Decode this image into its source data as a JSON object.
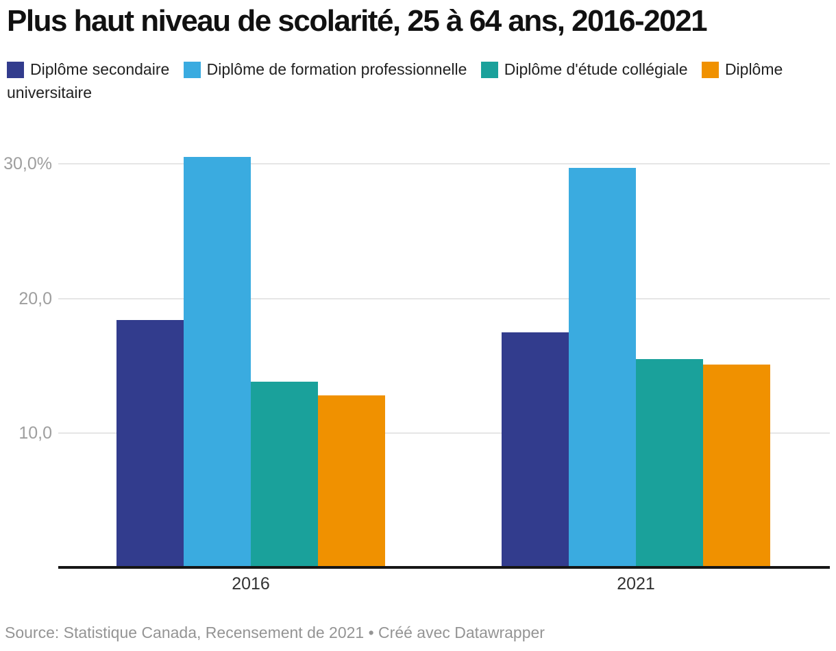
{
  "chart_data": {
    "type": "bar",
    "title": "Plus haut niveau de scolarité, 25 à 64 ans, 2016-2021",
    "categories": [
      "2016",
      "2021"
    ],
    "series": [
      {
        "name": "Diplôme secondaire",
        "color": "#323c8d",
        "values": [
          18.4,
          17.5
        ]
      },
      {
        "name": "Diplôme de formation professionnelle",
        "color": "#3aabe0",
        "values": [
          30.5,
          29.7
        ]
      },
      {
        "name": "Diplôme d'étude collégiale",
        "color": "#1aa19b",
        "values": [
          13.8,
          15.5
        ]
      },
      {
        "name": "Diplôme universitaire",
        "color": "#f09100",
        "values": [
          12.8,
          15.1
        ]
      }
    ],
    "y_ticks": [
      {
        "value": 10,
        "label": "10,0"
      },
      {
        "value": 20,
        "label": "20,0"
      },
      {
        "value": 30,
        "label": "30,0%"
      }
    ],
    "ylim": [
      0,
      32
    ],
    "xlabel": "",
    "ylabel": "",
    "grid": true,
    "legend_position": "top"
  },
  "footer": {
    "source_line": "Source: Statistique Canada, Recensement de 2021 • Créé avec Datawrapper"
  },
  "colors": {
    "grid": "#e6e6e6",
    "axis_line": "#161616",
    "y_label": "#9e9e9e",
    "x_label": "#333333",
    "source_text": "#949494",
    "title_text": "#111111"
  }
}
